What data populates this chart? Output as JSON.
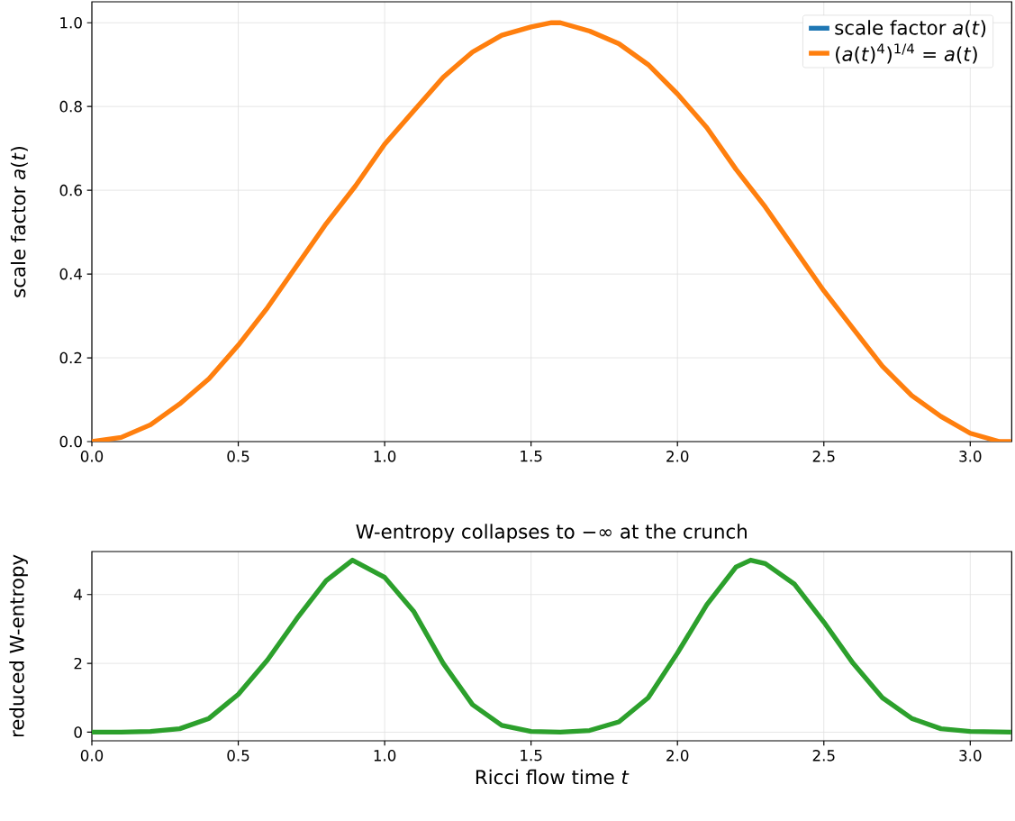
{
  "chart_data": [
    {
      "type": "line",
      "ylabel": "scale factor *a*(*t*)",
      "legend": "top right",
      "grid": true,
      "x": [
        0,
        0.1,
        0.2,
        0.3,
        0.4,
        0.5,
        0.6,
        0.7,
        0.8,
        0.9,
        1.0,
        1.1,
        1.2,
        1.3,
        1.4,
        1.5,
        1.57,
        1.6,
        1.7,
        1.8,
        1.9,
        2.0,
        2.1,
        2.2,
        2.3,
        2.4,
        2.5,
        2.6,
        2.7,
        2.8,
        2.9,
        3.0,
        3.1,
        3.14
      ],
      "series": [
        {
          "name": "scale factor *a*(*t*)",
          "color": "#1f77b4",
          "values": [
            null,
            null,
            null,
            null,
            null,
            null,
            null,
            null,
            null,
            null,
            null,
            null,
            null,
            null,
            null,
            null,
            null,
            null,
            null,
            null,
            null,
            null,
            null,
            null,
            null,
            null,
            null,
            null,
            null,
            null,
            null,
            null,
            null,
            null
          ]
        },
        {
          "name": "(*a*(*t*)$^{4}$)$^{1/4}$ = *a*(*t*)",
          "color": "#ff7f0e",
          "values": [
            0,
            0.01,
            0.04,
            0.09,
            0.15,
            0.23,
            0.32,
            0.42,
            0.52,
            0.61,
            0.71,
            0.79,
            0.87,
            0.93,
            0.97,
            0.99,
            1.0,
            1.0,
            0.98,
            0.95,
            0.9,
            0.83,
            0.75,
            0.65,
            0.56,
            0.46,
            0.36,
            0.27,
            0.18,
            0.11,
            0.06,
            0.02,
            0.0,
            0
          ]
        }
      ],
      "xlim": [
        0,
        3.1416
      ],
      "ylim": [
        0,
        1.05
      ],
      "xticks": [
        {
          "value": 0,
          "label": "0.0"
        },
        0.5,
        {
          "value": 1,
          "label": "1.0"
        },
        1.5,
        {
          "value": 2,
          "label": "2.0"
        },
        2.5,
        {
          "value": 3,
          "label": "3.0"
        }
      ],
      "yticks": [
        {
          "value": 0,
          "label": "0.0"
        },
        0.2,
        0.4,
        0.6,
        0.8,
        {
          "value": 1,
          "label": "1.0"
        }
      ]
    },
    {
      "type": "line",
      "title": "W-entropy collapses to −∞ at the crunch",
      "xlabel": "Ricci flow time *t*",
      "ylabel": "reduced W-entropy",
      "grid": true,
      "x": [
        0,
        0.1,
        0.2,
        0.3,
        0.4,
        0.5,
        0.6,
        0.7,
        0.8,
        0.89,
        1.0,
        1.1,
        1.2,
        1.3,
        1.4,
        1.5,
        1.6,
        1.7,
        1.8,
        1.9,
        2.0,
        2.1,
        2.2,
        2.25,
        2.3,
        2.4,
        2.5,
        2.6,
        2.7,
        2.8,
        2.9,
        3.0,
        3.14
      ],
      "series": [
        {
          "color": "#2ca02c",
          "values": [
            0,
            0,
            0.02,
            0.1,
            0.4,
            1.1,
            2.1,
            3.3,
            4.4,
            5.0,
            4.5,
            3.5,
            2.0,
            0.8,
            0.2,
            0.02,
            0,
            0.05,
            0.3,
            1.0,
            2.3,
            3.7,
            4.8,
            5.0,
            4.9,
            4.3,
            3.2,
            2.0,
            1.0,
            0.4,
            0.1,
            0.02,
            0
          ]
        }
      ],
      "xlim": [
        0,
        3.1416
      ],
      "ylim": [
        -0.25,
        5.25
      ],
      "xticks": [
        {
          "value": 0,
          "label": "0.0"
        },
        0.5,
        {
          "value": 1,
          "label": "1.0"
        },
        1.5,
        {
          "value": 2,
          "label": "2.0"
        },
        2.5,
        {
          "value": 3,
          "label": "3.0"
        }
      ],
      "yticks": [
        0,
        2,
        4
      ]
    }
  ]
}
